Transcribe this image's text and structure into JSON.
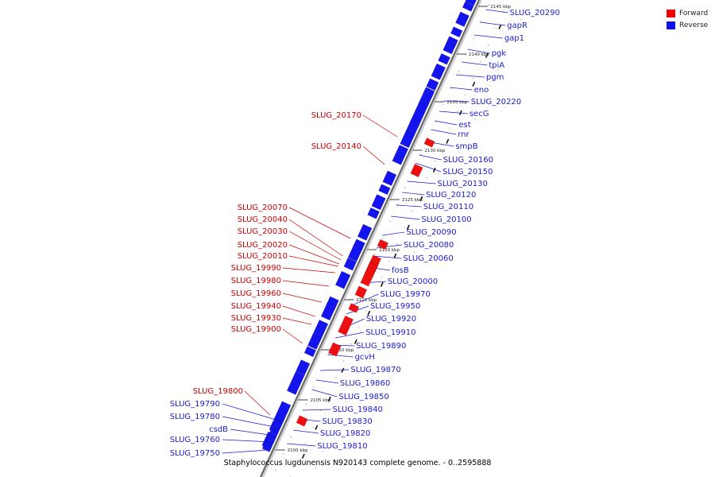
{
  "caption": "Staphylococcus lugdunensis N920143 complete genome. - 0..2595888",
  "legend": [
    {
      "label": "Forward",
      "color": "#ee0000"
    },
    {
      "label": "Reverse",
      "color": "#1010ee"
    }
  ],
  "ticks": [
    "2145 kbp",
    "2140 kbp",
    "2135 kbp",
    "2130 kbp",
    "2125 kbp",
    "2120 kbp",
    "2115 kbp",
    "2110 kbp",
    "2105 kbp",
    "2100 kbp"
  ],
  "forward_genes": [
    "SLUG_20170",
    "SLUG_20140",
    "SLUG_20070",
    "SLUG_20040",
    "SLUG_20030",
    "SLUG_20020",
    "SLUG_20010",
    "SLUG_19990",
    "SLUG_19980",
    "SLUG_19960",
    "SLUG_19940",
    "SLUG_19930",
    "SLUG_19900",
    "SLUG_19800"
  ],
  "reverse_genes": [
    "SLUG_20290",
    "gapR",
    "gap1",
    "pgk",
    "tpiA",
    "pgm",
    "eno",
    "SLUG_20220",
    "secG",
    "est",
    "rnr",
    "smpB",
    "SLUG_20160",
    "SLUG_20150",
    "SLUG_20130",
    "SLUG_20120",
    "SLUG_20110",
    "SLUG_20100",
    "SLUG_20090",
    "SLUG_20080",
    "SLUG_20060",
    "fosB",
    "SLUG_20000",
    "SLUG_19970",
    "SLUG_19950",
    "SLUG_19920",
    "SLUG_19910",
    "SLUG_19890",
    "gcvH",
    "SLUG_19870",
    "SLUG_19860",
    "SLUG_19850",
    "SLUG_19840",
    "SLUG_19830",
    "SLUG_19820",
    "SLUG_19810"
  ],
  "left_reverse_genes": [
    "SLUG_19790",
    "SLUG_19780",
    "csdB",
    "SLUG_19760",
    "SLUG_19750"
  ]
}
